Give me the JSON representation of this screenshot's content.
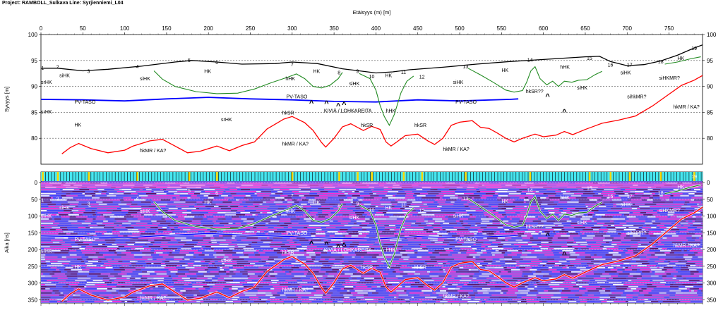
{
  "page_title": "Project: RAMBOLL_Sulkava  Line: Syrjienniemi_L04",
  "chart_data": [
    {
      "type": "line",
      "name": "depth-profile",
      "xlabel": "Etäisyys (m) [m]",
      "ylabel": "Syvyys [m]",
      "xlim": [
        0,
        790
      ],
      "ylim": [
        75,
        100
      ],
      "x_ticks": [
        0,
        50,
        100,
        150,
        200,
        250,
        300,
        350,
        400,
        450,
        500,
        550,
        600,
        650,
        700,
        750
      ],
      "y_ticks": [
        100,
        95,
        90,
        85,
        80
      ],
      "grid": "horizontal dashed",
      "series": [
        {
          "name": "ground-surface",
          "color": "#000000",
          "points": [
            [
              0,
              93.5
            ],
            [
              20,
              93.5
            ],
            [
              50,
              93.0
            ],
            [
              80,
              93.3
            ],
            [
              120,
              93.9
            ],
            [
              160,
              94.7
            ],
            [
              180,
              95.0
            ],
            [
              210,
              94.7
            ],
            [
              240,
              94.3
            ],
            [
              280,
              94.4
            ],
            [
              300,
              94.7
            ],
            [
              330,
              94.4
            ],
            [
              360,
              93.4
            ],
            [
              380,
              93.0
            ],
            [
              400,
              92.6
            ],
            [
              420,
              92.8
            ],
            [
              440,
              93.2
            ],
            [
              480,
              93.7
            ],
            [
              520,
              94.3
            ],
            [
              560,
              94.8
            ],
            [
              590,
              95.1
            ],
            [
              620,
              95.4
            ],
            [
              650,
              95.7
            ],
            [
              667,
              95.8
            ],
            [
              680,
              94.8
            ],
            [
              700,
              94.0
            ],
            [
              720,
              94.2
            ],
            [
              740,
              94.9
            ],
            [
              760,
              96.0
            ],
            [
              780,
              97.4
            ],
            [
              790,
              98.0
            ]
          ]
        },
        {
          "name": "water-table-pv-taso",
          "color": "#0000ff",
          "points": [
            [
              0,
              87.5
            ],
            [
              50,
              87.4
            ],
            [
              100,
              87.2
            ],
            [
              150,
              87.6
            ],
            [
              200,
              87.9
            ],
            [
              250,
              87.6
            ],
            [
              300,
              87.4
            ],
            [
              350,
              87.1
            ],
            [
              400,
              87.0
            ],
            [
              450,
              87.4
            ],
            [
              500,
              87.2
            ],
            [
              560,
              87.5
            ],
            [
              570,
              87.6
            ]
          ]
        },
        {
          "name": "bedrock-hkmr",
          "color": "#ff0000",
          "points": [
            [
              25,
              77.0
            ],
            [
              35,
              78.2
            ],
            [
              45,
              79.0
            ],
            [
              60,
              78.0
            ],
            [
              80,
              77.2
            ],
            [
              100,
              77.7
            ],
            [
              110,
              78.5
            ],
            [
              130,
              79.5
            ],
            [
              145,
              79.8
            ],
            [
              160,
              78.5
            ],
            [
              175,
              77.2
            ],
            [
              190,
              77.5
            ],
            [
              210,
              78.5
            ],
            [
              225,
              77.6
            ],
            [
              240,
              78.6
            ],
            [
              255,
              79.3
            ],
            [
              270,
              81.8
            ],
            [
              290,
              83.7
            ],
            [
              300,
              84.2
            ],
            [
              315,
              83.0
            ],
            [
              325,
              81.5
            ],
            [
              335,
              79.2
            ],
            [
              340,
              78.3
            ],
            [
              350,
              80.0
            ],
            [
              360,
              82.2
            ],
            [
              370,
              82.8
            ],
            [
              385,
              81.5
            ],
            [
              395,
              82.3
            ],
            [
              405,
              81.7
            ],
            [
              412,
              79.3
            ],
            [
              418,
              78.5
            ],
            [
              425,
              79.3
            ],
            [
              435,
              80.5
            ],
            [
              450,
              80.8
            ],
            [
              462,
              79.5
            ],
            [
              470,
              78.8
            ],
            [
              480,
              80.0
            ],
            [
              490,
              82.5
            ],
            [
              500,
              83.1
            ],
            [
              515,
              83.4
            ],
            [
              525,
              82.1
            ],
            [
              535,
              81.9
            ],
            [
              545,
              81.0
            ],
            [
              555,
              80.0
            ],
            [
              565,
              79.3
            ],
            [
              575,
              80.0
            ],
            [
              590,
              80.8
            ],
            [
              600,
              80.3
            ],
            [
              615,
              80.6
            ],
            [
              625,
              81.3
            ],
            [
              635,
              80.7
            ],
            [
              650,
              81.7
            ],
            [
              660,
              82.3
            ],
            [
              670,
              82.9
            ],
            [
              690,
              83.5
            ],
            [
              710,
              84.3
            ],
            [
              730,
              86.2
            ],
            [
              750,
              88.5
            ],
            [
              765,
              90.2
            ],
            [
              780,
              91.2
            ],
            [
              790,
              92.1
            ]
          ]
        },
        {
          "name": "interpreted-layer-green",
          "color": "#228b22",
          "segments": [
            [
              [
                135,
                93.0
              ],
              [
                145,
                91.4
              ],
              [
                160,
                90.0
              ],
              [
                185,
                89.0
              ],
              [
                210,
                88.6
              ],
              [
                235,
                88.7
              ],
              [
                255,
                89.5
              ],
              [
                275,
                90.7
              ],
              [
                295,
                91.8
              ],
              [
                305,
                92.4
              ],
              [
                315,
                91.5
              ],
              [
                325,
                90.0
              ],
              [
                335,
                89.7
              ],
              [
                345,
                90.2
              ],
              [
                355,
                91.5
              ],
              [
                360,
                92.7
              ]
            ],
            [
              [
                380,
                92.5
              ],
              [
                393,
                91.5
              ],
              [
                400,
                89.3
              ],
              [
                405,
                86.3
              ],
              [
                410,
                84.2
              ],
              [
                416,
                82.5
              ],
              [
                422,
                84.6
              ],
              [
                430,
                88.8
              ],
              [
                437,
                91.0
              ],
              [
                445,
                92.0
              ]
            ],
            [
              [
                510,
                93.5
              ],
              [
                525,
                92.2
              ],
              [
                540,
                90.8
              ],
              [
                555,
                89.3
              ],
              [
                565,
                88.9
              ],
              [
                575,
                89.2
              ],
              [
                580,
                90.8
              ],
              [
                585,
                93.0
              ],
              [
                590,
                93.8
              ],
              [
                596,
                91.5
              ],
              [
                604,
                90.3
              ],
              [
                611,
                91.0
              ],
              [
                618,
                90.0
              ],
              [
                625,
                91.0
              ],
              [
                634,
                90.8
              ],
              [
                642,
                91.2
              ],
              [
                652,
                91.3
              ],
              [
                662,
                92.3
              ],
              [
                670,
                92.9
              ]
            ],
            [
              [
                745,
                94.3
              ],
              [
                760,
                94.7
              ],
              [
                775,
                95.3
              ],
              [
                788,
                95.7
              ]
            ]
          ]
        }
      ],
      "station_labels": [
        {
          "text": "1",
          "x": 2,
          "y": 93.2
        },
        {
          "text": "2",
          "x": 20,
          "y": 93.4
        },
        {
          "text": "3",
          "x": 57,
          "y": 92.6
        },
        {
          "text": "4",
          "x": 115,
          "y": 93.5
        },
        {
          "text": "5",
          "x": 177,
          "y": 94.7
        },
        {
          "text": "6",
          "x": 210,
          "y": 94.3
        },
        {
          "text": "7",
          "x": 300,
          "y": 93.9
        },
        {
          "text": "8",
          "x": 356,
          "y": 92.3
        },
        {
          "text": "9",
          "x": 378,
          "y": 92.6
        },
        {
          "text": "10",
          "x": 395,
          "y": 91.6
        },
        {
          "text": "11",
          "x": 433,
          "y": 92.4
        },
        {
          "text": "12",
          "x": 455,
          "y": 91.5
        },
        {
          "text": "13",
          "x": 507,
          "y": 93.5
        },
        {
          "text": "14",
          "x": 584,
          "y": 94.8
        },
        {
          "text": "15",
          "x": 655,
          "y": 95.1
        },
        {
          "text": "16",
          "x": 680,
          "y": 93.8
        },
        {
          "text": "17",
          "x": 703,
          "y": 93.8
        },
        {
          "text": "18",
          "x": 740,
          "y": 94.4
        },
        {
          "text": "19",
          "x": 780,
          "y": 97.0
        }
      ],
      "annotations": [
        {
          "text": "srHK",
          "x": 0,
          "y": 90.5
        },
        {
          "text": "siHK",
          "x": 22,
          "y": 91.8
        },
        {
          "text": "siHK",
          "x": 118,
          "y": 91.2
        },
        {
          "text": "HK",
          "x": 195,
          "y": 92.6
        },
        {
          "text": "hHK",
          "x": 292,
          "y": 91.2
        },
        {
          "text": "HK",
          "x": 325,
          "y": 92.6
        },
        {
          "text": "siHK",
          "x": 368,
          "y": 90.2
        },
        {
          "text": "HK",
          "x": 411,
          "y": 91.8
        },
        {
          "text": "siHK",
          "x": 492,
          "y": 90.5
        },
        {
          "text": "HK",
          "x": 550,
          "y": 92.8
        },
        {
          "text": "hHK",
          "x": 620,
          "y": 93.4
        },
        {
          "text": "siHK",
          "x": 640,
          "y": 89.4
        },
        {
          "text": "siHK",
          "x": 692,
          "y": 92.3
        },
        {
          "text": "HK",
          "x": 760,
          "y": 95.1
        },
        {
          "text": "siHKMR?",
          "x": 738,
          "y": 91.3
        },
        {
          "text": "PV-TASO",
          "x": 40,
          "y": 86.7
        },
        {
          "text": "PV-TASO",
          "x": 293,
          "y": 87.7
        },
        {
          "text": "PV-TASO",
          "x": 495,
          "y": 86.7
        },
        {
          "text": "srHK",
          "x": 0,
          "y": 84.8
        },
        {
          "text": "HK",
          "x": 40,
          "y": 82.3
        },
        {
          "text": "srHK",
          "x": 215,
          "y": 83.3
        },
        {
          "text": "KIVIÄ / LOHKAREITA",
          "x": 338,
          "y": 85.0
        },
        {
          "text": "hHK",
          "x": 412,
          "y": 85.0
        },
        {
          "text": "hkSR??",
          "x": 579,
          "y": 88.7
        },
        {
          "text": "sihkMR?",
          "x": 700,
          "y": 87.7
        },
        {
          "text": "hkMR / KA?",
          "x": 755,
          "y": 85.7
        },
        {
          "text": "hkSR",
          "x": 288,
          "y": 84.6
        },
        {
          "text": "hkSR",
          "x": 382,
          "y": 82.2
        },
        {
          "text": "hkSR",
          "x": 446,
          "y": 82.2
        },
        {
          "text": "hkMR / KA?",
          "x": 118,
          "y": 77.3
        },
        {
          "text": "hkMR / KA?",
          "x": 288,
          "y": 78.6
        },
        {
          "text": "hkMR / KA?",
          "x": 480,
          "y": 77.6
        }
      ],
      "markers": [
        {
          "symbol": "^",
          "x": 323,
          "y": 86.3
        },
        {
          "symbol": "^",
          "x": 341,
          "y": 86.2
        },
        {
          "symbol": "^",
          "x": 355,
          "y": 85.7
        },
        {
          "symbol": "^",
          "x": 362,
          "y": 86.0
        },
        {
          "symbol": "^",
          "x": 605,
          "y": 87.6
        },
        {
          "symbol": "^",
          "x": 625,
          "y": 84.6
        }
      ]
    },
    {
      "type": "heatmap",
      "name": "gpr-radargram",
      "ylabel": "Aika [ns]",
      "xlim": [
        0,
        790
      ],
      "ylim": [
        0,
        360
      ],
      "y_ticks": [
        0,
        50,
        100,
        150,
        200,
        250,
        300,
        350
      ],
      "colormap": [
        "#ff2bd6",
        "#4040ff",
        "#ffffff",
        "#5a1060"
      ],
      "marker_color": "#ffd700",
      "station_labels": [
        "1",
        "2",
        "3",
        "4",
        "5",
        "6",
        "7",
        "8",
        "9",
        "10",
        "11",
        "12",
        "13",
        "14",
        "15",
        "16",
        "17",
        "18",
        "19"
      ],
      "annotations": [
        "srHK",
        "siHK",
        "siHK",
        "HK",
        "hHK",
        "HK",
        "siHK",
        "HK",
        "siHK",
        "HK",
        "hHK",
        "siHK",
        "siHK",
        "HK",
        "siHKMR?",
        "PV-TASO",
        "PV-TASO",
        "PV-TASO",
        "srHK",
        "HK",
        "srHK",
        "KIVIÄ / LOHKAREITA",
        "hHK",
        "hkSR??",
        "sihkMR?",
        "hkMR / KA?",
        "hkSR",
        "hkSR",
        "hkSR",
        "hkMR / KA?",
        "hkMR / KA?",
        "hkMR / KA?"
      ]
    }
  ]
}
